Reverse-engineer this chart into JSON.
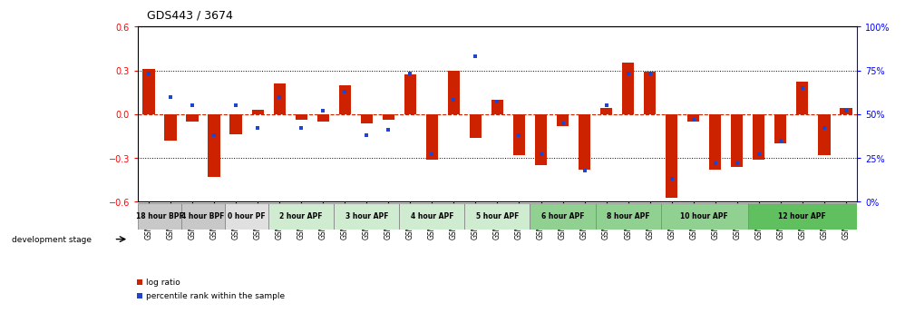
{
  "title": "GDS443 / 3674",
  "samples": [
    "GSM4585",
    "GSM4586",
    "GSM4587",
    "GSM4588",
    "GSM4589",
    "GSM4590",
    "GSM4591",
    "GSM4592",
    "GSM4593",
    "GSM4594",
    "GSM4595",
    "GSM4596",
    "GSM4597",
    "GSM4598",
    "GSM4599",
    "GSM4600",
    "GSM4601",
    "GSM4602",
    "GSM4603",
    "GSM4604",
    "GSM4605",
    "GSM4606",
    "GSM4607",
    "GSM4608",
    "GSM4609",
    "GSM4610",
    "GSM4611",
    "GSM4612",
    "GSM4613",
    "GSM4614",
    "GSM4615",
    "GSM4616",
    "GSM4617"
  ],
  "log_ratio": [
    0.31,
    -0.18,
    -0.05,
    -0.43,
    -0.14,
    0.03,
    0.21,
    -0.04,
    -0.05,
    0.2,
    -0.06,
    -0.04,
    0.27,
    -0.31,
    0.3,
    -0.16,
    0.1,
    -0.28,
    -0.35,
    -0.08,
    -0.38,
    0.04,
    0.35,
    0.29,
    -0.57,
    -0.05,
    -0.38,
    -0.36,
    -0.31,
    -0.2,
    0.22,
    -0.28,
    0.04
  ],
  "percentile": [
    0.73,
    0.6,
    0.55,
    0.38,
    0.55,
    0.42,
    0.6,
    0.42,
    0.52,
    0.63,
    0.38,
    0.41,
    0.73,
    0.27,
    0.58,
    0.83,
    0.57,
    0.38,
    0.27,
    0.45,
    0.18,
    0.55,
    0.73,
    0.73,
    0.13,
    0.47,
    0.22,
    0.22,
    0.27,
    0.35,
    0.65,
    0.42,
    0.52
  ],
  "stage_groups": [
    {
      "label": "18 hour BPF",
      "start": 0,
      "end": 2,
      "color": "#c8c8c8"
    },
    {
      "label": "4 hour BPF",
      "start": 2,
      "end": 4,
      "color": "#c8c8c8"
    },
    {
      "label": "0 hour PF",
      "start": 4,
      "end": 6,
      "color": "#e0e0e0"
    },
    {
      "label": "2 hour APF",
      "start": 6,
      "end": 9,
      "color": "#d0ecd0"
    },
    {
      "label": "3 hour APF",
      "start": 9,
      "end": 12,
      "color": "#d0ecd0"
    },
    {
      "label": "4 hour APF",
      "start": 12,
      "end": 15,
      "color": "#d0ecd0"
    },
    {
      "label": "5 hour APF",
      "start": 15,
      "end": 18,
      "color": "#d0ecd0"
    },
    {
      "label": "6 hour APF",
      "start": 18,
      "end": 21,
      "color": "#90d090"
    },
    {
      "label": "8 hour APF",
      "start": 21,
      "end": 24,
      "color": "#90d090"
    },
    {
      "label": "10 hour APF",
      "start": 24,
      "end": 28,
      "color": "#90d090"
    },
    {
      "label": "12 hour APF",
      "start": 28,
      "end": 33,
      "color": "#60c060"
    }
  ],
  "ylim": [
    -0.6,
    0.6
  ],
  "bar_color": "#cc2200",
  "dot_color": "#2244cc",
  "right_yticks": [
    0,
    25,
    50,
    75,
    100
  ],
  "right_ylabels": [
    "0%",
    "25%",
    "50%",
    "75%",
    "100%"
  ]
}
